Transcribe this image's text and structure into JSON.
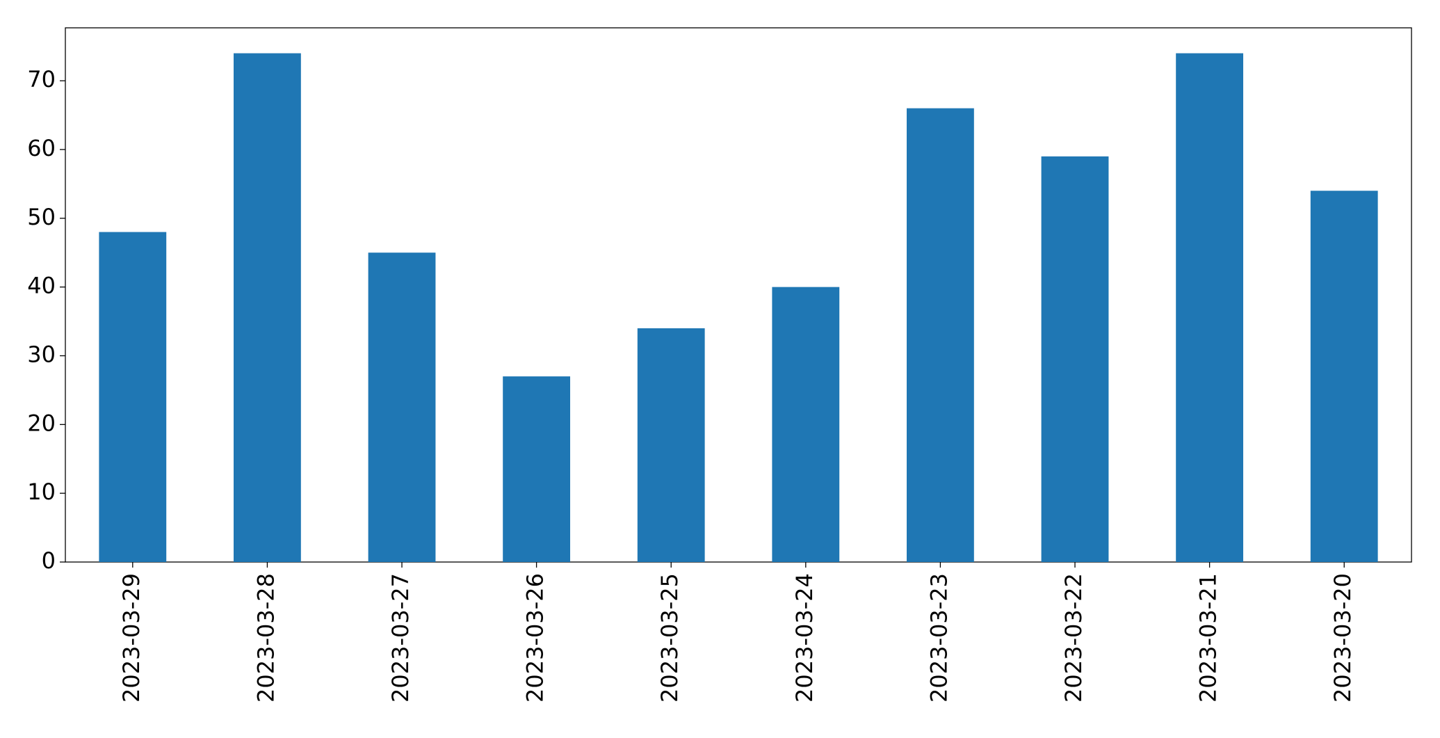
{
  "chart_data": {
    "type": "bar",
    "categories": [
      "2023-03-29",
      "2023-03-28",
      "2023-03-27",
      "2023-03-26",
      "2023-03-25",
      "2023-03-24",
      "2023-03-23",
      "2023-03-22",
      "2023-03-21",
      "2023-03-20"
    ],
    "values": [
      48,
      74,
      45,
      27,
      34,
      40,
      66,
      59,
      74,
      54
    ],
    "color": "#1f77b4",
    "ylim": [
      0,
      77.7
    ],
    "yticks": [
      0,
      10,
      20,
      30,
      40,
      50,
      60,
      70
    ],
    "grid": false
  }
}
